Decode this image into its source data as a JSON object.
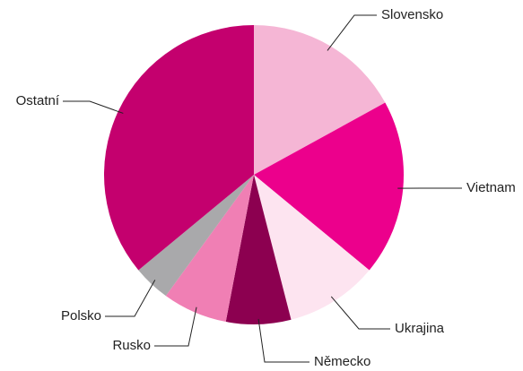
{
  "chart_data": {
    "type": "pie",
    "categories": [
      "Slovensko",
      "Vietnam",
      "Ukrajina",
      "Německo",
      "Rusko",
      "Polsko",
      "Ostatní"
    ],
    "values": [
      17,
      19,
      10,
      7,
      7,
      4,
      36
    ],
    "colors": [
      "#f5b6d5",
      "#ec008c",
      "#fde4f0",
      "#8c0050",
      "#f07fb4",
      "#a9a9ab",
      "#c4006e"
    ]
  }
}
